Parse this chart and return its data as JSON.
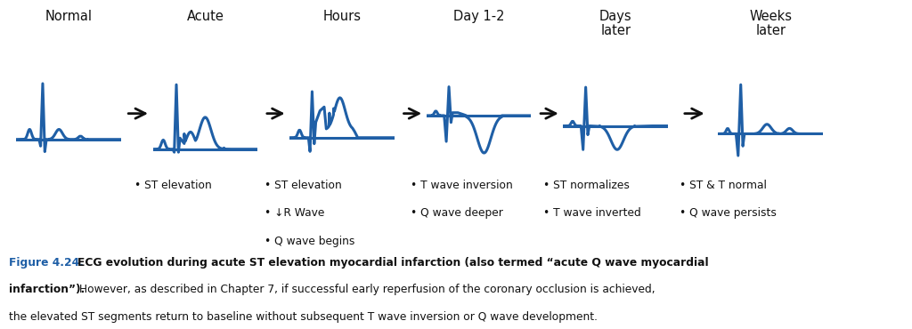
{
  "title_labels": [
    "Normal",
    "Acute",
    "Hours",
    "Day 1-2",
    "Days\nlater",
    "Weeks\nlater"
  ],
  "bullet_labels": [
    [],
    [
      "• ST elevation"
    ],
    [
      "• ST elevation",
      "• ↓R Wave",
      "• Q wave begins"
    ],
    [
      "• T wave inversion",
      "• Q wave deeper"
    ],
    [
      "• ST normalizes",
      "• T wave inverted"
    ],
    [
      "• ST & T normal",
      "• Q wave persists"
    ]
  ],
  "ecg_color": "#1f5fa6",
  "arrow_color": "#111111",
  "text_color": "#111111",
  "background_color": "#ffffff",
  "figure_label": "Figure 4.24.",
  "figure_bold_text": " ECG evolution during acute ST elevation myocardial infarction (also termed “acute Q wave myocardial infarction”).",
  "figure_normal_text": " However, as described in Chapter 7, if successful early reperfusion of the coronary occlusion is achieved, the elevated ST segments return to baseline without subsequent T wave inversion or Q wave development."
}
